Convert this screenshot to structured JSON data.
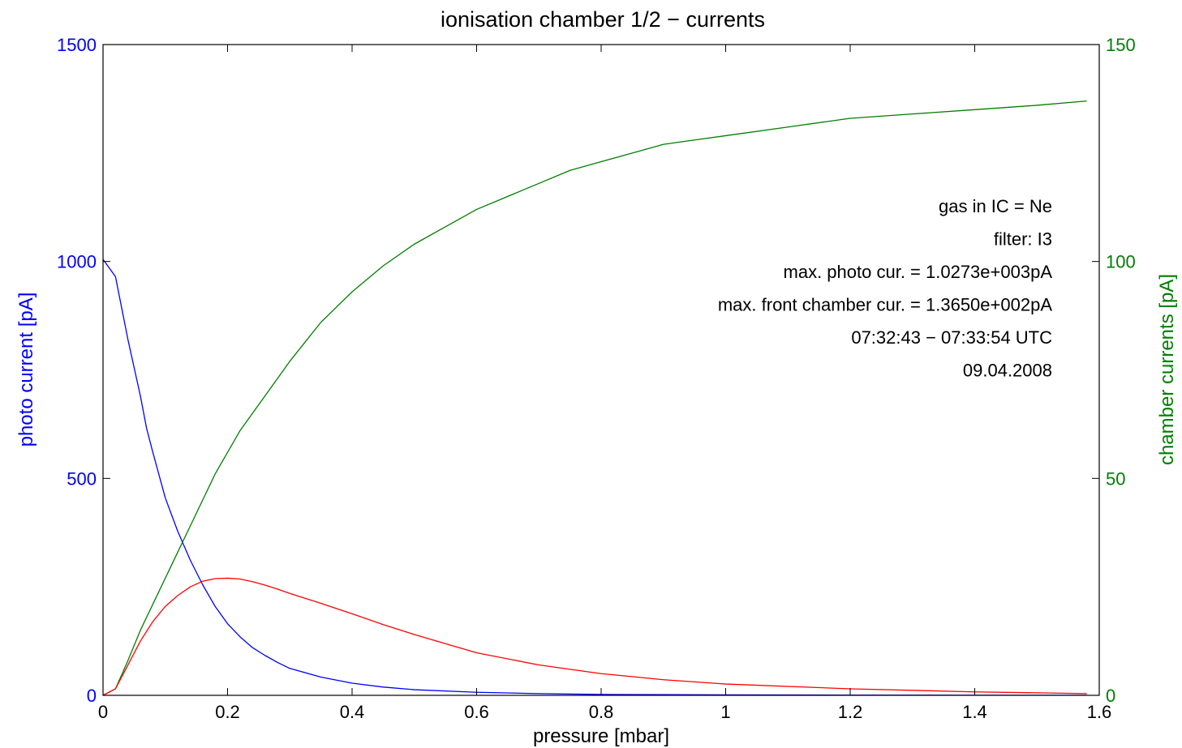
{
  "chart_data": {
    "type": "line",
    "title": "ionisation chamber 1/2 − currents",
    "xlabel": "pressure [mbar]",
    "ylabel_left": "photo current [pA]",
    "ylabel_right": "chamber currents [pA]",
    "xlim": [
      0,
      1.6
    ],
    "ylim_left": [
      0,
      1500
    ],
    "ylim_right": [
      0,
      150
    ],
    "xticks": [
      "0",
      "0.2",
      "0.4",
      "0.6",
      "0.8",
      "1",
      "1.2",
      "1.4",
      "1.6"
    ],
    "xtick_values": [
      0,
      0.2,
      0.4,
      0.6,
      0.8,
      1.0,
      1.2,
      1.4,
      1.6
    ],
    "yticks_left": [
      "0",
      "500",
      "1000",
      "1500"
    ],
    "ytick_values_left": [
      0,
      500,
      1000,
      1500
    ],
    "yticks_right": [
      "0",
      "50",
      "100",
      "150"
    ],
    "ytick_values_right": [
      0,
      50,
      100,
      150
    ],
    "grid": false,
    "colors": {
      "left_axis": "#0000ff",
      "right_axis": "#007f00",
      "frame": "#000000"
    },
    "series": [
      {
        "axis": "left",
        "color": "#0000ff",
        "x": [
          0,
          0.02,
          0.04,
          0.06,
          0.07,
          0.08,
          0.1,
          0.12,
          0.14,
          0.16,
          0.18,
          0.2,
          0.22,
          0.24,
          0.26,
          0.28,
          0.3,
          0.35,
          0.4,
          0.45,
          0.5,
          0.6,
          0.7,
          0.8,
          0.9,
          1.0,
          1.2,
          1.4,
          1.58
        ],
        "y": [
          1005,
          965,
          820,
          690,
          615,
          560,
          455,
          378,
          312,
          255,
          205,
          165,
          135,
          110,
          92,
          76,
          62,
          42,
          28,
          19,
          13,
          7,
          4,
          2,
          1.5,
          1,
          0.5,
          0.3,
          0.2
        ]
      },
      {
        "axis": "right",
        "color": "#007f00",
        "x": [
          0,
          0.02,
          0.04,
          0.06,
          0.08,
          0.1,
          0.12,
          0.14,
          0.16,
          0.18,
          0.2,
          0.22,
          0.25,
          0.28,
          0.3,
          0.35,
          0.4,
          0.45,
          0.5,
          0.55,
          0.6,
          0.65,
          0.7,
          0.75,
          0.8,
          0.85,
          0.9,
          0.95,
          1.0,
          1.1,
          1.2,
          1.3,
          1.4,
          1.5,
          1.58
        ],
        "y": [
          0,
          1.5,
          8,
          15,
          21,
          27,
          33,
          39,
          45,
          51,
          56,
          61,
          67,
          73,
          77,
          86,
          93,
          99,
          104,
          108,
          112,
          115,
          118,
          121,
          123,
          125,
          127,
          128,
          129,
          131,
          133,
          134,
          135,
          136,
          137
        ]
      },
      {
        "axis": "right",
        "color": "#ff0000",
        "x": [
          0,
          0.02,
          0.04,
          0.06,
          0.08,
          0.1,
          0.12,
          0.14,
          0.16,
          0.18,
          0.2,
          0.22,
          0.24,
          0.26,
          0.28,
          0.3,
          0.35,
          0.4,
          0.45,
          0.5,
          0.6,
          0.7,
          0.8,
          0.9,
          1.0,
          1.2,
          1.4,
          1.58
        ],
        "y": [
          0,
          1.5,
          7,
          12.5,
          17,
          20.5,
          23,
          25,
          26.3,
          26.9,
          27,
          26.8,
          26.2,
          25.4,
          24.5,
          23.5,
          21.2,
          18.8,
          16.3,
          14,
          9.8,
          7,
          5,
          3.6,
          2.6,
          1.5,
          0.8,
          0.4
        ]
      }
    ],
    "annotations": [
      "gas in IC = Ne",
      "filter: I3",
      "max. photo cur. = 1.0273e+003pA",
      "max. front chamber cur. = 1.3650e+002pA",
      "07:32:43 − 07:33:54 UTC",
      "09.04.2008"
    ]
  }
}
